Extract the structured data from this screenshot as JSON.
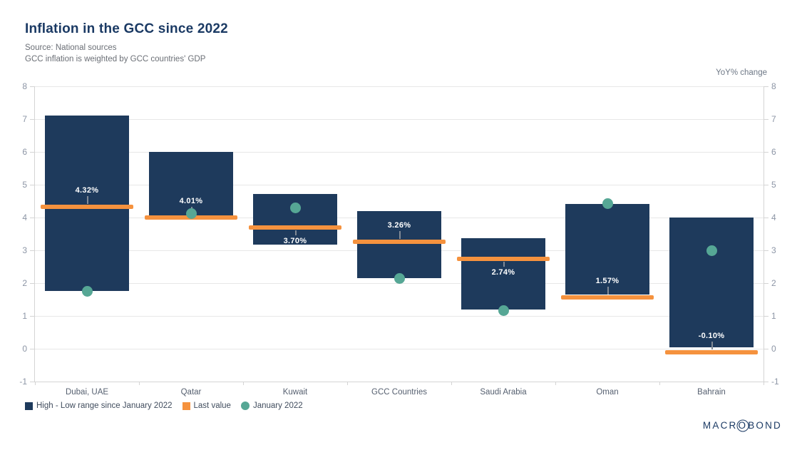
{
  "header": {
    "title": "Inflation in the GCC since 2022",
    "source_line": "Source: National sources",
    "note_line": "GCC inflation is weighted by GCC countries' GDP"
  },
  "axis": {
    "unit_label": "YoY% change",
    "y_ticks": [
      "8",
      "7",
      "6",
      "5",
      "4",
      "3",
      "2",
      "1",
      "0",
      "-1"
    ]
  },
  "chart_data": {
    "type": "bar",
    "title": "Inflation in the GCC since 2022",
    "ylabel": "YoY% change",
    "ylim": [
      -1,
      8
    ],
    "grid": true,
    "legend_position": "bottom-left",
    "categories": [
      "Dubai, UAE",
      "Qatar",
      "Kuwait",
      "GCC Countries",
      "Saudi Arabia",
      "Oman",
      "Bahrain"
    ],
    "series": [
      {
        "name": "High - Low range since January 2022",
        "type": "range-bar",
        "high": [
          7.1,
          6.0,
          4.72,
          4.2,
          3.37,
          4.42,
          4.0
        ],
        "low": [
          1.75,
          4.05,
          3.17,
          2.15,
          1.2,
          1.65,
          0.05
        ]
      },
      {
        "name": "Last value",
        "type": "tick",
        "values": [
          4.32,
          4.01,
          3.7,
          3.26,
          2.74,
          1.57,
          -0.1
        ],
        "labels": [
          "4.32%",
          "4.01%",
          "3.70%",
          "3.26%",
          "2.74%",
          "1.57%",
          "-0.10%"
        ],
        "label_side": [
          "above",
          "above",
          "below",
          "above",
          "below",
          "above",
          "above"
        ]
      },
      {
        "name": "January 2022",
        "type": "point",
        "values": [
          1.75,
          4.12,
          4.3,
          2.15,
          1.17,
          4.42,
          3.0
        ]
      }
    ]
  },
  "legend": {
    "items": [
      {
        "label": "High - Low range since January 2022",
        "shape": "square",
        "color": "#1E3A5C"
      },
      {
        "label": "Last value",
        "shape": "square",
        "color": "#F5923E"
      },
      {
        "label": "January 2022",
        "shape": "circle",
        "color": "#56A795"
      }
    ]
  },
  "branding": {
    "logo_pre": "MACR",
    "logo_o": "O",
    "logo_post": "BOND"
  },
  "colors": {
    "navy": "#1E3A5C",
    "navyTitle": "#1B3A64",
    "orange": "#F5923E",
    "teal": "#56A795",
    "grid": "#E7E7E7",
    "axis": "#D4D4D4",
    "ylab": "#8C95A5",
    "xlab": "#566070"
  }
}
